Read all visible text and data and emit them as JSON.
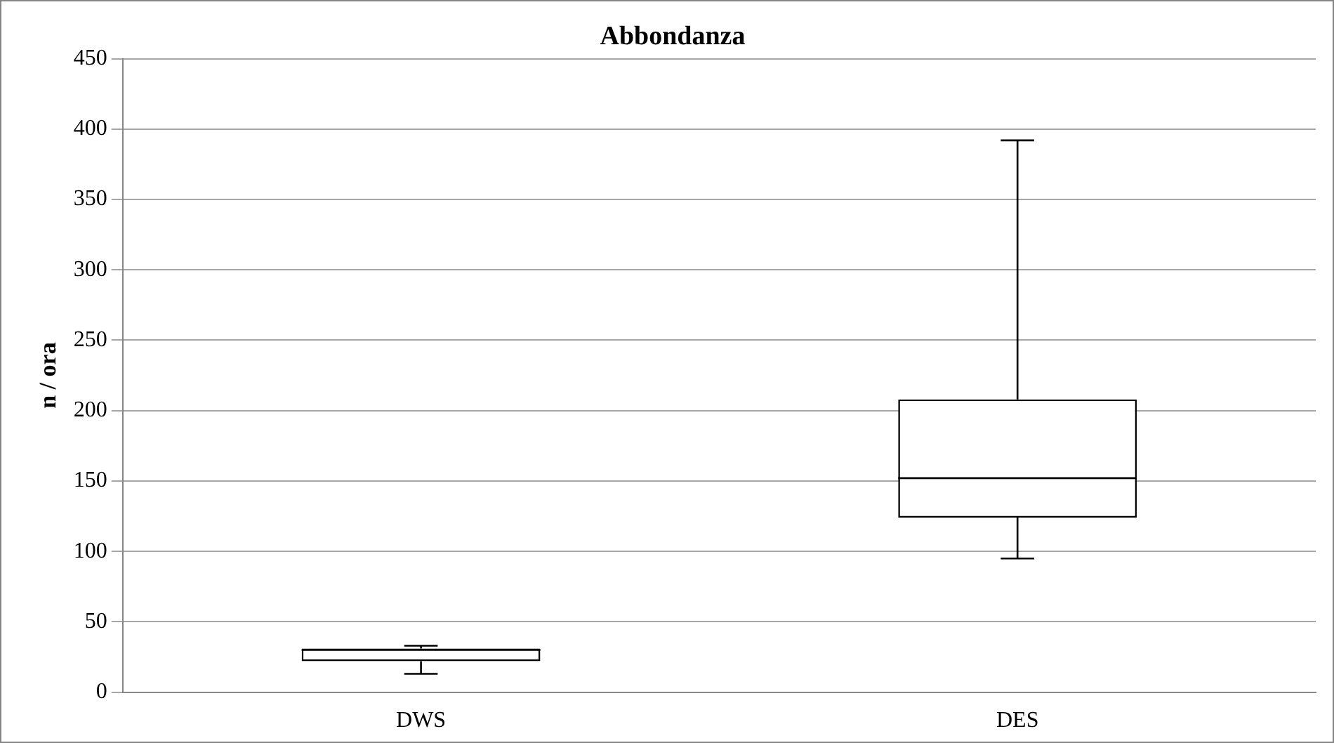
{
  "chart_data": {
    "type": "box",
    "title": "Abbondanza",
    "ylabel": "n / ora",
    "categories": [
      "DWS",
      "DES"
    ],
    "boxes": [
      {
        "low": 13,
        "q1": 22,
        "median": 30,
        "q3": 31,
        "high": 33
      },
      {
        "low": 95,
        "q1": 124,
        "median": 152,
        "q3": 208,
        "high": 392
      }
    ],
    "color": "#000000",
    "ylim": [
      0,
      450
    ],
    "yticks": [
      0,
      50,
      100,
      150,
      200,
      250,
      300,
      350,
      400,
      450
    ],
    "grid": "y",
    "legend": false
  }
}
